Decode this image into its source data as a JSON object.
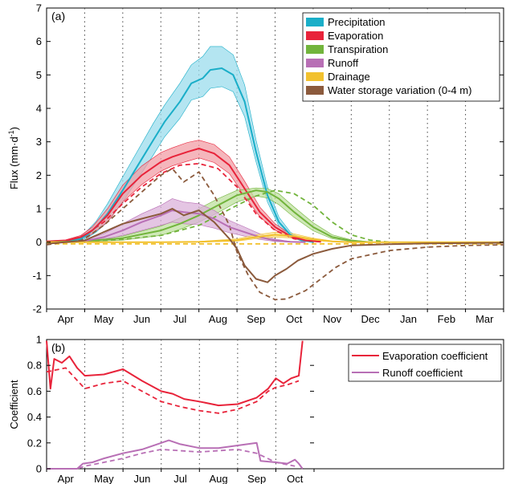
{
  "chart_data": [
    {
      "panel_label": "(a)",
      "type": "line",
      "ylabel": "Flux (mm·d⁻¹)",
      "ylabel_main": "Flux (mm·d",
      "ylabel_sup": "-1",
      "ylabel_close": ")",
      "ylim": [
        -2,
        7
      ],
      "yticks": [
        "-2",
        "-1",
        "0",
        "1",
        "2",
        "3",
        "4",
        "5",
        "6",
        "7"
      ],
      "x_months": [
        "Apr",
        "May",
        "Jun",
        "Jul",
        "Aug",
        "Sep",
        "Oct",
        "Nov",
        "Dec",
        "Jan",
        "Feb",
        "Mar"
      ],
      "legend_position": "top-right",
      "series": [
        {
          "name": "Precipitation",
          "color": "#1aaec8",
          "band_color": "#9bdcec",
          "x": [
            0.5,
            0.9,
            1.1,
            1.3,
            1.6,
            2.0,
            2.4,
            2.8,
            3.1,
            3.5,
            3.8,
            4.1,
            4.3,
            4.6,
            4.9,
            5.2,
            5.5,
            5.8,
            6.1,
            6.4,
            6.7,
            7.0
          ],
          "y": [
            0.02,
            0.1,
            0.25,
            0.45,
            0.85,
            1.55,
            2.3,
            3.05,
            3.6,
            4.2,
            4.75,
            4.9,
            5.15,
            5.2,
            5.0,
            4.2,
            2.7,
            1.4,
            0.6,
            0.22,
            0.06,
            0.0
          ],
          "lower": [
            0.0,
            0.05,
            0.15,
            0.3,
            0.6,
            1.2,
            1.9,
            2.6,
            3.15,
            3.7,
            4.25,
            4.35,
            4.6,
            4.65,
            4.5,
            3.75,
            2.4,
            1.2,
            0.48,
            0.16,
            0.03,
            0.0
          ],
          "upper": [
            0.05,
            0.18,
            0.38,
            0.62,
            1.15,
            1.95,
            2.75,
            3.55,
            4.1,
            4.75,
            5.3,
            5.55,
            5.85,
            5.85,
            5.6,
            4.7,
            3.05,
            1.65,
            0.75,
            0.3,
            0.1,
            0.02
          ]
        },
        {
          "name": "Evaporation",
          "color": "#e8233a",
          "band_color": "#f29da6",
          "x": [
            0.0,
            0.5,
            0.9,
            1.2,
            1.6,
            2.0,
            2.5,
            3.0,
            3.3,
            3.7,
            4.0,
            4.4,
            4.8,
            5.2,
            5.6,
            6.0,
            6.4,
            6.8,
            7.2
          ],
          "y": [
            0.02,
            0.04,
            0.15,
            0.35,
            0.8,
            1.45,
            2.0,
            2.4,
            2.55,
            2.7,
            2.8,
            2.65,
            2.3,
            1.6,
            0.9,
            0.45,
            0.18,
            0.05,
            0.01
          ],
          "lower": [
            0.0,
            0.02,
            0.1,
            0.25,
            0.6,
            1.2,
            1.72,
            2.12,
            2.28,
            2.42,
            2.52,
            2.38,
            2.05,
            1.38,
            0.76,
            0.36,
            0.13,
            0.03,
            0.0
          ],
          "upper": [
            0.04,
            0.07,
            0.2,
            0.45,
            1.0,
            1.7,
            2.28,
            2.68,
            2.82,
            2.98,
            3.05,
            2.92,
            2.55,
            1.82,
            1.05,
            0.55,
            0.24,
            0.08,
            0.02
          ],
          "dashed": {
            "x": [
              0.5,
              1.0,
              1.5,
              2.0,
              2.5,
              3.0,
              3.5,
              4.0,
              4.5,
              5.0,
              5.5,
              6.0,
              6.5,
              7.0
            ],
            "y": [
              0.03,
              0.2,
              0.6,
              1.15,
              1.65,
              2.05,
              2.3,
              2.35,
              2.2,
              1.65,
              0.85,
              0.35,
              0.1,
              0.02
            ]
          }
        },
        {
          "name": "Transpiration",
          "color": "#72b43c",
          "band_color": "#bfe09f",
          "x": [
            0.0,
            1.0,
            2.0,
            3.0,
            3.5,
            4.0,
            4.5,
            5.0,
            5.5,
            5.8,
            6.1,
            6.5,
            7.0,
            7.5,
            8.0,
            8.5
          ],
          "y": [
            0.0,
            0.03,
            0.12,
            0.35,
            0.55,
            0.8,
            1.1,
            1.4,
            1.55,
            1.5,
            1.3,
            0.9,
            0.45,
            0.15,
            0.04,
            0.0
          ],
          "lower": [
            0.0,
            0.01,
            0.06,
            0.2,
            0.38,
            0.6,
            0.88,
            1.2,
            1.38,
            1.32,
            1.12,
            0.74,
            0.34,
            0.1,
            0.02,
            0.0
          ],
          "upper": [
            0.01,
            0.05,
            0.18,
            0.48,
            0.72,
            1.0,
            1.3,
            1.55,
            1.62,
            1.6,
            1.45,
            1.05,
            0.58,
            0.22,
            0.07,
            0.01
          ],
          "dashed": {
            "x": [
              0.0,
              1.0,
              2.0,
              3.0,
              4.0,
              4.5,
              5.0,
              5.5,
              6.0,
              6.5,
              7.0,
              7.5,
              8.0,
              8.5,
              9.0
            ],
            "y": [
              0.0,
              0.02,
              0.08,
              0.2,
              0.5,
              0.8,
              1.1,
              1.38,
              1.55,
              1.45,
              1.1,
              0.6,
              0.22,
              0.06,
              0.0
            ]
          }
        },
        {
          "name": "Runoff",
          "color": "#b86fb5",
          "band_color": "#dbb2d9",
          "x": [
            0.5,
            1.0,
            1.5,
            2.0,
            2.5,
            3.0,
            3.3,
            3.6,
            4.0,
            4.4,
            4.8,
            5.2,
            5.6,
            6.0,
            6.4,
            6.8
          ],
          "y": [
            0.0,
            0.03,
            0.15,
            0.35,
            0.6,
            0.8,
            0.95,
            0.9,
            0.85,
            0.7,
            0.45,
            0.3,
            0.15,
            0.05,
            0.01,
            0.0
          ],
          "lower": [
            0.0,
            0.01,
            0.08,
            0.2,
            0.35,
            0.5,
            0.6,
            0.55,
            0.52,
            0.42,
            0.28,
            0.18,
            0.08,
            0.02,
            0.0,
            0.0
          ],
          "upper": [
            0.01,
            0.06,
            0.25,
            0.55,
            0.85,
            1.1,
            1.3,
            1.2,
            1.15,
            0.95,
            0.65,
            0.45,
            0.25,
            0.09,
            0.02,
            0.0
          ]
        },
        {
          "name": "Drainage",
          "color": "#f2c12e",
          "band_color": "#f8e28f",
          "x": [
            0.0,
            3.0,
            4.0,
            5.0,
            5.5,
            6.0,
            6.5,
            7.0,
            7.5,
            8.0,
            12.0
          ],
          "y": [
            0.0,
            0.0,
            0.01,
            0.06,
            0.15,
            0.22,
            0.18,
            0.08,
            0.02,
            0.0,
            0.0
          ],
          "lower": [
            0.0,
            0.0,
            0.0,
            0.03,
            0.1,
            0.15,
            0.12,
            0.05,
            0.01,
            0.0,
            0.0
          ],
          "upper": [
            0.0,
            0.0,
            0.02,
            0.1,
            0.22,
            0.3,
            0.25,
            0.12,
            0.04,
            0.0,
            0.0
          ],
          "dashed": {
            "x": [
              0.0,
              12.0
            ],
            "y": [
              -0.05,
              -0.05
            ]
          }
        },
        {
          "name": "Water storage variation (0-4 m)",
          "color": "#8b5a3c",
          "x": [
            0.0,
            1.0,
            1.5,
            2.0,
            2.5,
            3.0,
            3.3,
            3.6,
            4.0,
            4.4,
            4.8,
            5.0,
            5.2,
            5.5,
            5.8,
            6.0,
            6.3,
            6.6,
            7.0,
            7.5,
            8.0,
            9.0,
            10.0,
            11.0,
            12.0
          ],
          "y": [
            -0.05,
            0.05,
            0.3,
            0.55,
            0.7,
            0.85,
            1.0,
            0.8,
            0.95,
            0.6,
            0.1,
            -0.2,
            -0.7,
            -1.1,
            -1.2,
            -1.0,
            -0.8,
            -0.55,
            -0.35,
            -0.2,
            -0.1,
            -0.06,
            -0.04,
            -0.03,
            -0.02
          ],
          "dashed": {
            "x": [
              0.0,
              1.0,
              1.5,
              2.0,
              2.5,
              3.0,
              3.3,
              3.6,
              4.0,
              4.4,
              4.8,
              5.0,
              5.3,
              5.6,
              6.0,
              6.3,
              6.8,
              7.2,
              7.6,
              8.0,
              9.0,
              10.0,
              11.0,
              12.0
            ],
            "y": [
              -0.08,
              0.1,
              0.5,
              1.0,
              1.5,
              2.0,
              2.2,
              1.8,
              2.1,
              1.4,
              0.5,
              -0.3,
              -1.0,
              -1.5,
              -1.72,
              -1.7,
              -1.45,
              -1.1,
              -0.75,
              -0.5,
              -0.25,
              -0.15,
              -0.1,
              -0.08
            ]
          }
        }
      ]
    },
    {
      "panel_label": "(b)",
      "type": "line",
      "ylabel": "Coefficient",
      "ylim": [
        0,
        1
      ],
      "yticks": [
        "0",
        "0.2",
        "0.4",
        "0.6",
        "0.8",
        "1"
      ],
      "x_months": [
        "Apr",
        "May",
        "Jun",
        "Jul",
        "Aug",
        "Sep",
        "Oct"
      ],
      "legend_position": "top-right",
      "series": [
        {
          "name": "Evaporation coefficient",
          "color": "#e8233a",
          "x": [
            0.0,
            0.1,
            0.2,
            0.4,
            0.6,
            0.8,
            1.0,
            1.5,
            2.0,
            2.5,
            3.0,
            3.3,
            3.6,
            4.0,
            4.5,
            5.0,
            5.5,
            5.8,
            6.0,
            6.2,
            6.4,
            6.6,
            6.7
          ],
          "y": [
            0.99,
            0.62,
            0.85,
            0.82,
            0.87,
            0.78,
            0.72,
            0.73,
            0.77,
            0.68,
            0.6,
            0.58,
            0.54,
            0.52,
            0.49,
            0.5,
            0.55,
            0.62,
            0.7,
            0.66,
            0.7,
            0.72,
            0.99
          ],
          "dashed": {
            "x": [
              0.0,
              0.5,
              1.0,
              1.5,
              2.0,
              2.5,
              3.0,
              3.5,
              4.0,
              4.5,
              5.0,
              5.5,
              5.8,
              6.0,
              6.3,
              6.6
            ],
            "y": [
              0.75,
              0.78,
              0.62,
              0.66,
              0.68,
              0.6,
              0.52,
              0.48,
              0.45,
              0.43,
              0.46,
              0.52,
              0.6,
              0.63,
              0.65,
              0.68
            ]
          }
        },
        {
          "name": "Runoff coefficient",
          "color": "#b86fb5",
          "x": [
            0.0,
            0.8,
            0.95,
            1.2,
            1.5,
            2.0,
            2.5,
            3.0,
            3.2,
            3.5,
            4.0,
            4.5,
            5.0,
            5.5,
            5.6,
            6.0,
            6.3,
            6.5,
            6.6,
            6.7
          ],
          "y": [
            0.0,
            0.0,
            0.04,
            0.05,
            0.08,
            0.12,
            0.15,
            0.2,
            0.22,
            0.19,
            0.16,
            0.16,
            0.18,
            0.2,
            0.06,
            0.05,
            0.04,
            0.07,
            0.04,
            0.0
          ],
          "dashed": {
            "x": [
              0.0,
              0.8,
              1.0,
              1.5,
              2.0,
              2.5,
              3.0,
              3.5,
              4.0,
              4.5,
              5.0,
              5.5,
              6.0,
              6.5
            ],
            "y": [
              0.0,
              0.0,
              0.02,
              0.05,
              0.08,
              0.12,
              0.15,
              0.14,
              0.13,
              0.14,
              0.15,
              0.12,
              0.05,
              0.02
            ]
          }
        }
      ]
    }
  ]
}
